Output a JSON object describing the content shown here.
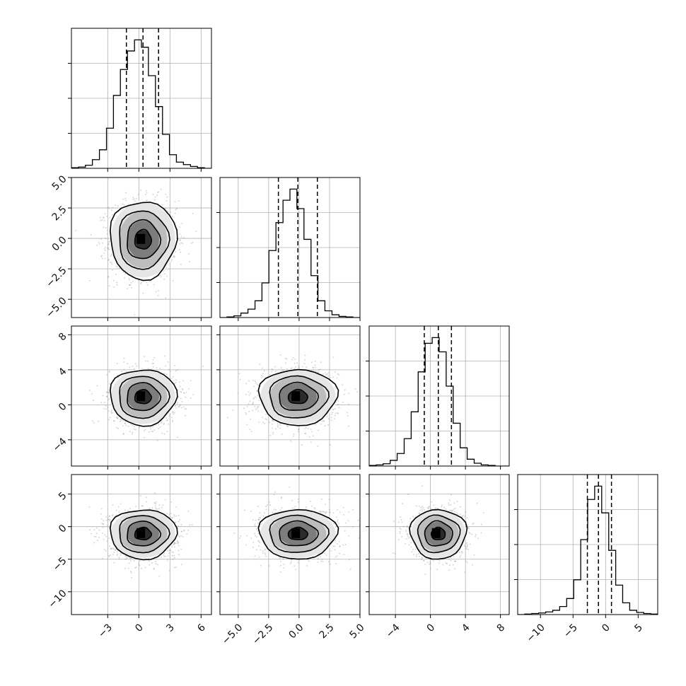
{
  "chart_data": {
    "type": "corner",
    "title": "",
    "parameters": 4,
    "histograms": [
      {
        "param": 0,
        "xlim": [
          -6.5,
          7.0
        ],
        "xticks": [
          "-3",
          "0",
          "3",
          "6"
        ],
        "xtick_values": [
          -3,
          0,
          3,
          6
        ],
        "bin_edges": [
          -6.5,
          -5.82,
          -5.15,
          -4.48,
          -3.8,
          -3.12,
          -2.45,
          -1.78,
          -1.1,
          -0.42,
          0.25,
          0.92,
          1.6,
          2.28,
          2.95,
          3.62,
          4.3,
          4.98,
          5.65,
          6.32,
          7.0
        ],
        "counts": [
          1,
          2,
          5,
          14,
          30,
          65,
          118,
          160,
          190,
          208,
          196,
          150,
          100,
          55,
          22,
          10,
          6,
          3,
          1,
          0
        ],
        "quantiles": [
          -1.2,
          0.4,
          1.9
        ]
      },
      {
        "param": 1,
        "xlim": [
          -6.5,
          5.0
        ],
        "xticks": [
          "-5.0",
          "-2.5",
          "0.0",
          "2.5",
          "5.0"
        ],
        "xtick_values": [
          -5.0,
          -2.5,
          0.0,
          2.5,
          5.0
        ],
        "bin_edges": [
          -6.5,
          -5.92,
          -5.35,
          -4.78,
          -4.2,
          -3.62,
          -3.05,
          -2.48,
          -1.9,
          -1.32,
          -0.75,
          -0.18,
          0.4,
          0.98,
          1.55,
          2.12,
          2.7,
          3.28,
          3.85,
          4.42,
          5.0
        ],
        "counts": [
          0,
          1,
          3,
          8,
          15,
          30,
          62,
          120,
          170,
          210,
          230,
          195,
          140,
          75,
          30,
          12,
          5,
          2,
          1,
          0
        ],
        "quantiles": [
          -1.7,
          -0.1,
          1.5
        ]
      },
      {
        "param": 2,
        "xlim": [
          -7.0,
          9.0
        ],
        "xticks": [
          "-4",
          "0",
          "4",
          "8"
        ],
        "xtick_values": [
          -4,
          0,
          4,
          8
        ],
        "bin_edges": [
          -7.0,
          -6.2,
          -5.4,
          -4.6,
          -3.8,
          -3.0,
          -2.2,
          -1.4,
          -0.6,
          0.2,
          1.0,
          1.8,
          2.6,
          3.4,
          4.2,
          5.0,
          5.8,
          6.6,
          7.4,
          8.2,
          9.0
        ],
        "counts": [
          1,
          2,
          4,
          10,
          22,
          48,
          95,
          165,
          215,
          225,
          200,
          140,
          75,
          32,
          12,
          5,
          2,
          1,
          0,
          0
        ],
        "quantiles": [
          -0.7,
          0.9,
          2.4
        ]
      },
      {
        "param": 3,
        "xlim": [
          -13.5,
          8.0
        ],
        "xticks": [
          "-10",
          "-5",
          "0",
          "5"
        ],
        "xtick_values": [
          -10,
          -5,
          0,
          5
        ],
        "bin_edges": [
          -13.5,
          -12.42,
          -11.35,
          -10.28,
          -9.2,
          -8.12,
          -7.05,
          -5.98,
          -4.9,
          -3.82,
          -2.75,
          -1.68,
          -0.6,
          0.48,
          1.55,
          2.62,
          3.7,
          4.78,
          5.85,
          6.92,
          8.0
        ],
        "counts": [
          0,
          1,
          2,
          3,
          5,
          8,
          15,
          30,
          65,
          140,
          215,
          240,
          190,
          120,
          55,
          22,
          8,
          4,
          2,
          1
        ],
        "quantiles": [
          -2.8,
          -1.1,
          0.9
        ]
      }
    ],
    "ytick_labels": {
      "1": [
        "5.0",
        "2.5",
        "0.0",
        "-2.5",
        "-5.0"
      ],
      "2": [
        "8",
        "4",
        "0",
        "-4"
      ],
      "3": [
        "5",
        "0",
        "-5",
        "-10"
      ]
    },
    "ytick_values": {
      "1": [
        5.0,
        2.5,
        0.0,
        -2.5,
        -5.0
      ],
      "2": [
        8,
        4,
        0,
        -4
      ],
      "3": [
        5,
        0,
        -5,
        -10
      ]
    },
    "ylims": {
      "1": [
        -6.5,
        5.0
      ],
      "2": [
        -7.0,
        9.0
      ],
      "3": [
        -13.5,
        8.0
      ]
    },
    "pairs": [
      {
        "x": 0,
        "y": 1,
        "mean": [
          0.4,
          -0.1
        ],
        "sd": [
          1.6,
          1.6
        ]
      },
      {
        "x": 0,
        "y": 2,
        "mean": [
          0.4,
          0.9
        ],
        "sd": [
          1.6,
          1.6
        ]
      },
      {
        "x": 1,
        "y": 2,
        "mean": [
          -0.1,
          0.9
        ],
        "sd": [
          1.6,
          1.6
        ]
      },
      {
        "x": 0,
        "y": 3,
        "mean": [
          0.4,
          -1.1
        ],
        "sd": [
          1.6,
          1.9
        ]
      },
      {
        "x": 1,
        "y": 3,
        "mean": [
          -0.1,
          -1.1
        ],
        "sd": [
          1.6,
          1.9
        ]
      },
      {
        "x": 2,
        "y": 3,
        "mean": [
          0.9,
          -1.1
        ],
        "sd": [
          1.6,
          1.9
        ]
      }
    ],
    "contour_levels_sigma": [
      0.5,
      1.0,
      1.5,
      2.0
    ],
    "grid": true,
    "colors": {
      "axis": "#000000",
      "grid": "#b0b0b0",
      "points": "#8c8c8c",
      "density_dark": "#000000",
      "background": "#ffffff"
    }
  }
}
